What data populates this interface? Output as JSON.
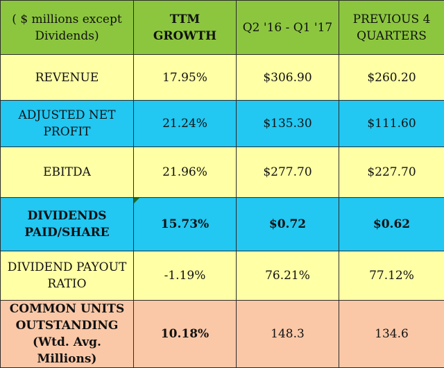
{
  "table": {
    "header": {
      "label": "( $ millions except Dividends)",
      "col_growth": "TTM GROWTH",
      "col_current": "Q2 '16 - Q1 '17",
      "col_previous": "PREVIOUS 4 QUARTERS"
    },
    "rows": [
      {
        "label": "REVENUE",
        "growth": "17.95%",
        "current": "$306.90",
        "previous": "$260.20"
      },
      {
        "label": "ADJUSTED NET PROFIT",
        "growth": "21.24%",
        "current": "$135.30",
        "previous": "$111.60"
      },
      {
        "label": "EBITDA",
        "growth": "21.96%",
        "current": "$277.70",
        "previous": "$227.70"
      },
      {
        "label": "DIVIDENDS PAID/SHARE",
        "growth": "15.73%",
        "current": "$0.72",
        "previous": "$0.62"
      },
      {
        "label": "DIVIDEND PAYOUT RATIO",
        "growth": "-1.19%",
        "current": "76.21%",
        "previous": "77.12%"
      },
      {
        "label": "COMMON UNITS OUTSTANDING (Wtd. Avg. Millions)",
        "growth": "10.18%",
        "current": "148.3",
        "previous": "134.6"
      }
    ]
  },
  "colors": {
    "header_green": "#8cc63f",
    "row_yellow": "#ffffa6",
    "row_blue": "#22c7f2",
    "row_peach": "#fac8a7"
  }
}
